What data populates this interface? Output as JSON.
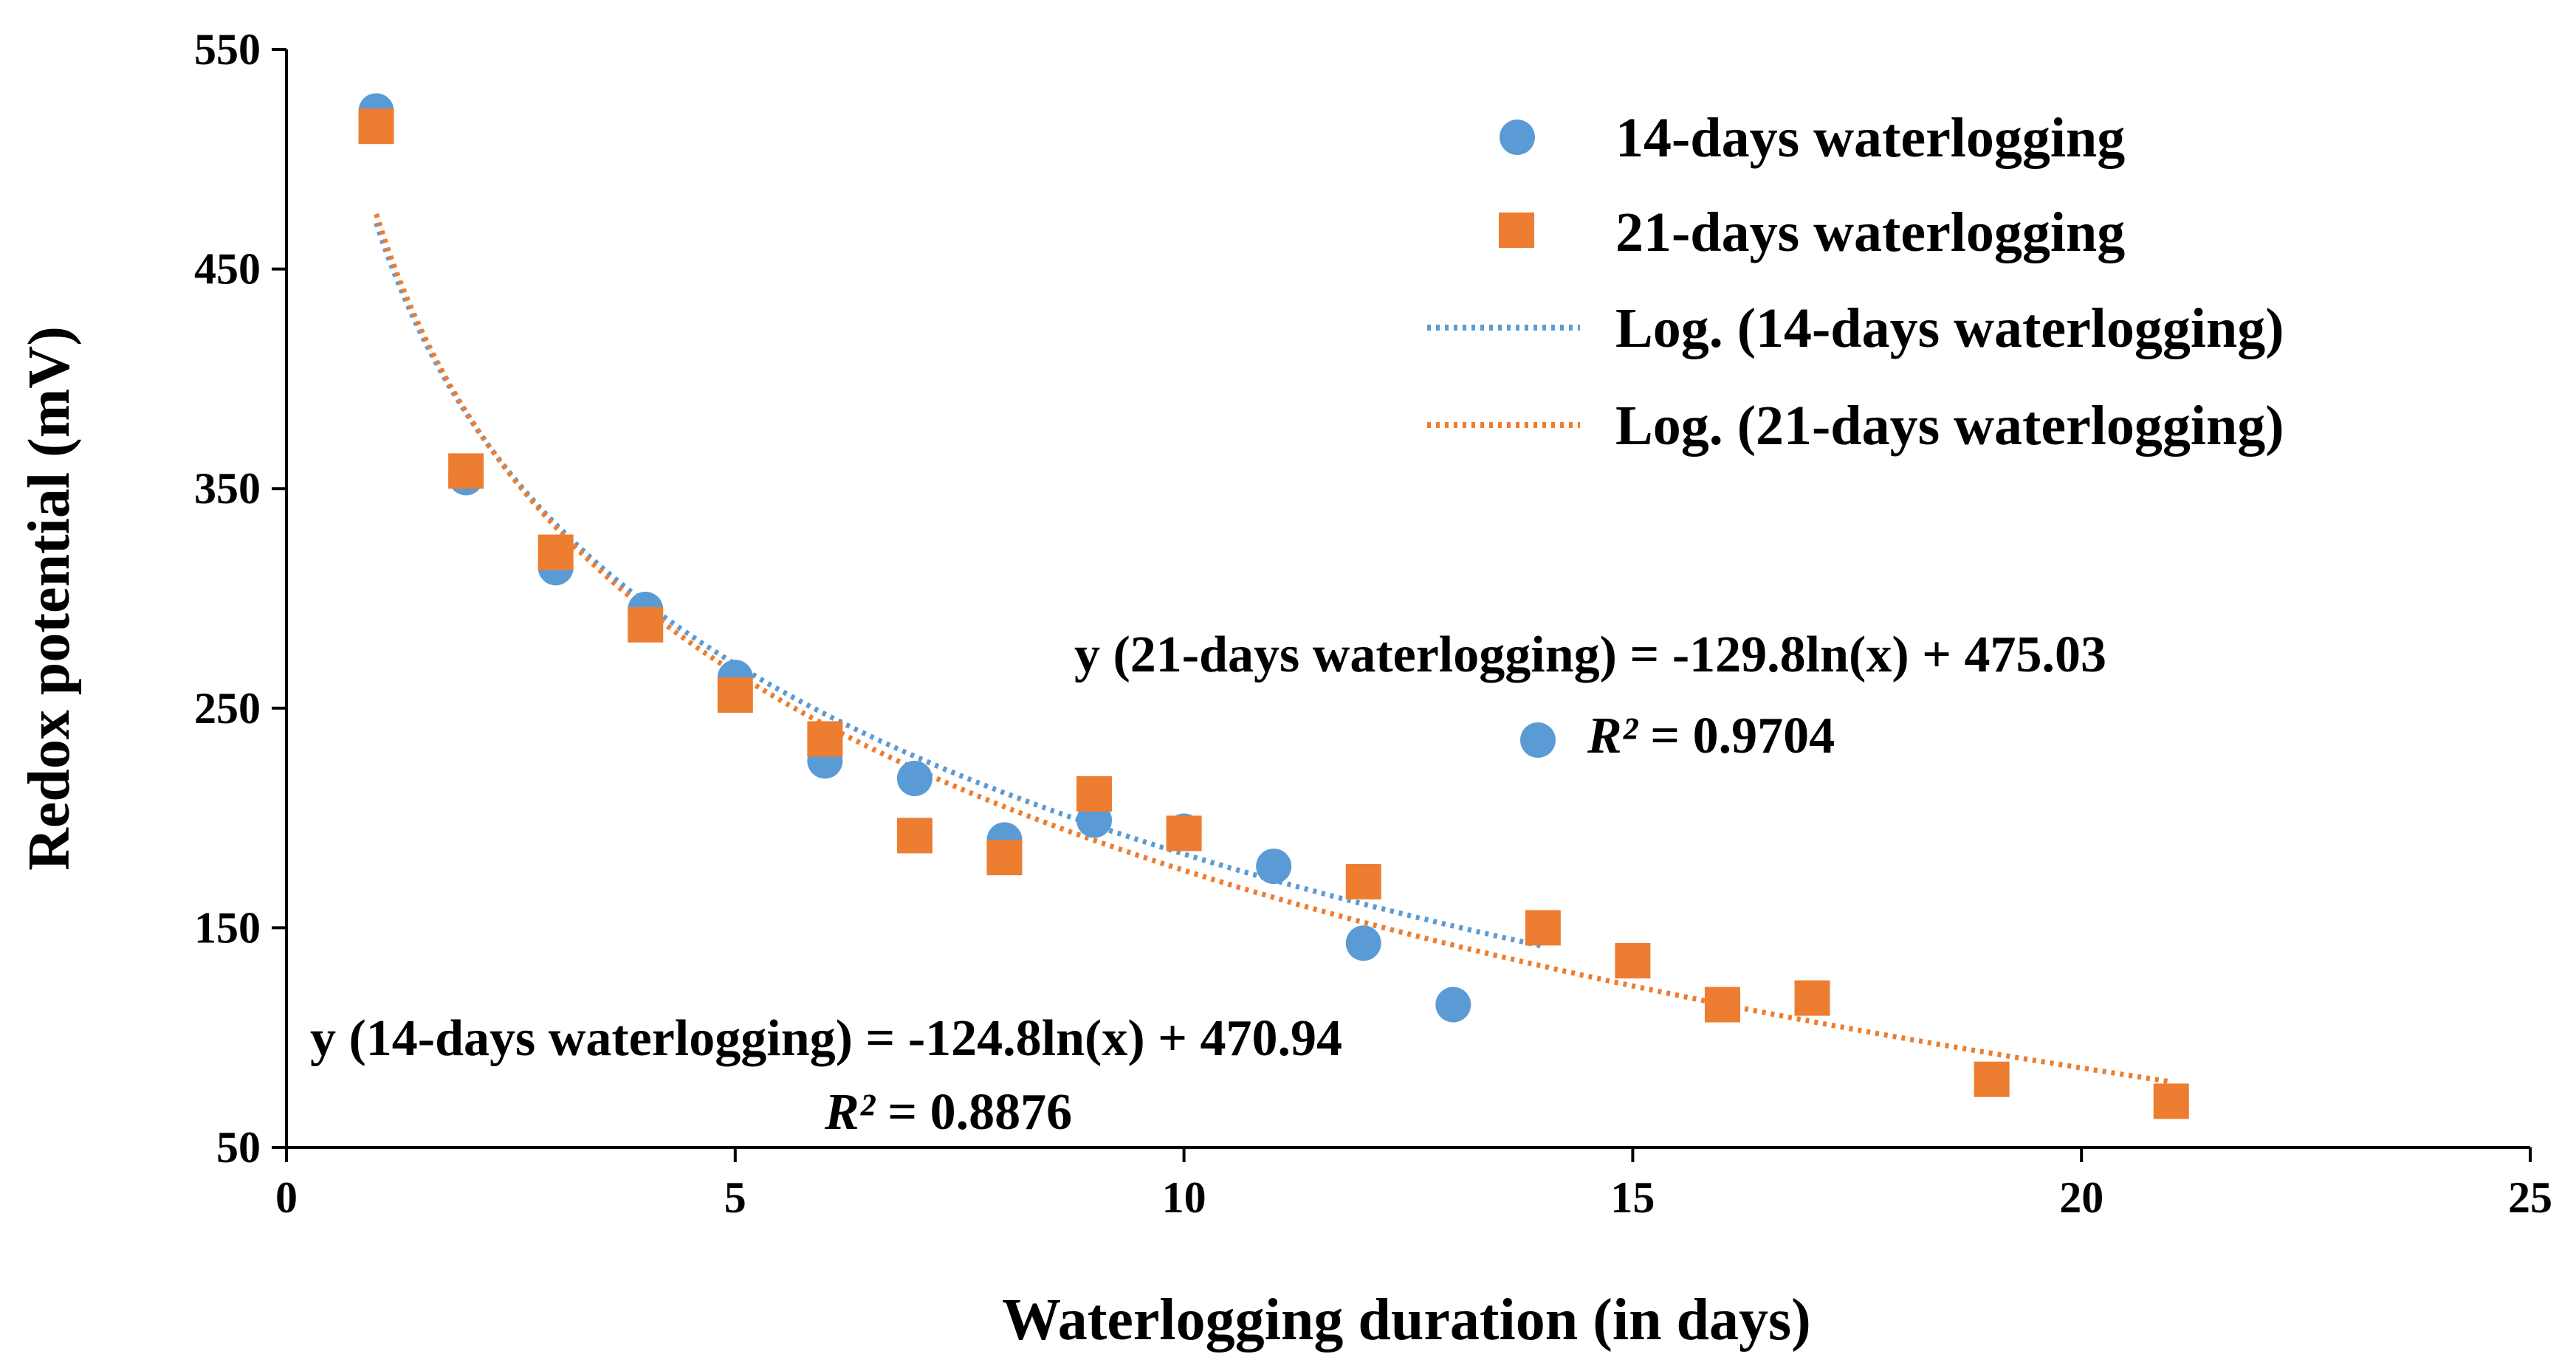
{
  "chart_data": {
    "type": "scatter",
    "title": "",
    "xlabel": "Waterlogging duration (in days)",
    "ylabel": "Redox  potential (mV)",
    "xlim": [
      0,
      25
    ],
    "ylim": [
      50,
      550
    ],
    "xticks": [
      0,
      5,
      10,
      15,
      20,
      25
    ],
    "yticks": [
      50,
      150,
      250,
      350,
      450,
      550
    ],
    "grid": false,
    "legend_position": "top-right",
    "series": [
      {
        "name": "14-days waterlogging",
        "marker": "circle",
        "color": "#5B9BD5",
        "x": [
          1,
          2,
          3,
          4,
          5,
          6,
          7,
          8,
          9,
          10,
          11,
          12,
          13
        ],
        "y": [
          522,
          355,
          314,
          295,
          264,
          226,
          218,
          190,
          199,
          194,
          178,
          143,
          115
        ]
      },
      {
        "name": "21-days waterlogging",
        "marker": "square",
        "color": "#ED7D31",
        "x": [
          1,
          2,
          3,
          4,
          5,
          6,
          7,
          8,
          9,
          10,
          12,
          14,
          15,
          16,
          17,
          19,
          21
        ],
        "y": [
          515,
          358,
          321,
          288,
          256,
          236,
          192,
          182,
          211,
          193,
          171,
          150,
          135,
          115,
          118,
          81,
          71
        ]
      }
    ],
    "trendlines": [
      {
        "name": "Log. (14-days waterlogging)",
        "type": "log",
        "color": "#5B9BD5",
        "a": -124.8,
        "b": 470.94,
        "x_range": [
          1,
          14
        ]
      },
      {
        "name": "Log. (21-days waterlogging)",
        "type": "log",
        "color": "#ED7D31",
        "a": -129.8,
        "b": 475.03,
        "x_range": [
          1,
          21
        ]
      }
    ],
    "annotations": {
      "eq21": "y (21-days waterlogging) = -129.8ln(x) + 475.03",
      "r2_21_label": "R²",
      "r2_21_value": " = 0.9704",
      "eq14": "y (14-days waterlogging) = -124.8ln(x) + 470.94",
      "r2_14_label": "R²",
      "r2_14_value": " = 0.8876"
    }
  }
}
